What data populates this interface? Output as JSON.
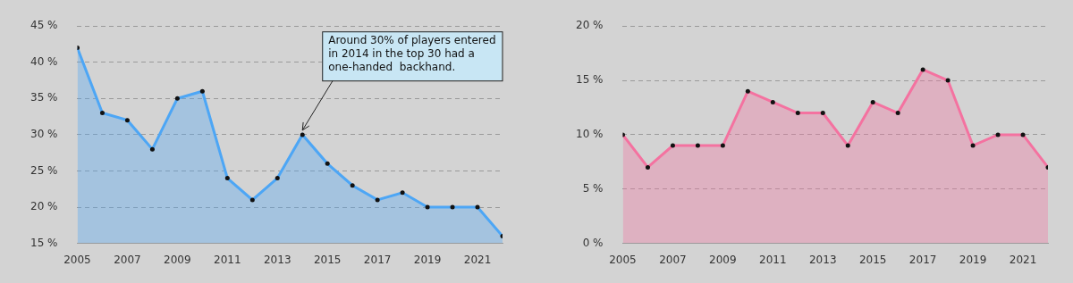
{
  "chart_data": [
    {
      "type": "area",
      "x": [
        2005,
        2006,
        2007,
        2008,
        2009,
        2010,
        2011,
        2012,
        2013,
        2014,
        2015,
        2016,
        2017,
        2018,
        2019,
        2020,
        2021,
        2022
      ],
      "values": [
        42,
        33,
        32,
        28,
        35,
        36,
        24,
        21,
        24,
        30,
        26,
        23,
        21,
        22,
        20,
        20,
        20,
        16
      ],
      "color": "#4da6f5",
      "marker": "circle",
      "xlim": [
        2005,
        2022
      ],
      "xticks": [
        2005,
        2007,
        2009,
        2011,
        2013,
        2015,
        2017,
        2019,
        2021
      ],
      "ylim": [
        15,
        45
      ],
      "yticks": [
        {
          "value": 15,
          "label": "15 %"
        },
        {
          "value": 20,
          "label": "20 %"
        },
        {
          "value": 25,
          "label": "25 %"
        },
        {
          "value": 30,
          "label": "30 %"
        },
        {
          "value": 35,
          "label": "35 %"
        },
        {
          "value": 40,
          "label": "40 %"
        },
        {
          "value": 45,
          "label": "45 %"
        }
      ],
      "grid": true,
      "annotations": [
        {
          "text": [
            "Around 30% of players entered",
            "in 2014 in the top 30 had a",
            "one-handed  backhand."
          ],
          "x": 2014,
          "y": 30
        }
      ]
    },
    {
      "type": "area",
      "x": [
        2005,
        2006,
        2007,
        2008,
        2009,
        2010,
        2011,
        2012,
        2013,
        2014,
        2015,
        2016,
        2017,
        2018,
        2019,
        2020,
        2021,
        2022
      ],
      "values": [
        10,
        7,
        9,
        9,
        9,
        14,
        13,
        12,
        12,
        9,
        13,
        12,
        16,
        15,
        9,
        10,
        10,
        7
      ],
      "color": "#f472a0",
      "marker": "circle",
      "xlim": [
        2005,
        2022
      ],
      "xticks": [
        2005,
        2007,
        2009,
        2011,
        2013,
        2015,
        2017,
        2019,
        2021
      ],
      "ylim": [
        0,
        20
      ],
      "yticks": [
        {
          "value": 0,
          "label": "0 %"
        },
        {
          "value": 5,
          "label": "5 %"
        },
        {
          "value": 10,
          "label": "10 %"
        },
        {
          "value": 15,
          "label": "15 %"
        },
        {
          "value": 20,
          "label": "20 %"
        }
      ],
      "grid": true
    }
  ]
}
